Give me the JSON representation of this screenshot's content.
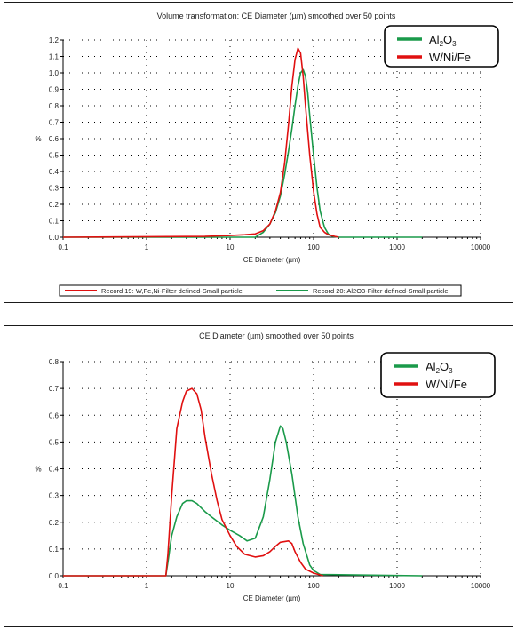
{
  "chart_data": [
    {
      "type": "line",
      "title": "Volume transformation: CE Diameter (µm) smoothed over 50 points",
      "xlabel": "CE Diameter (µm)",
      "ylabel": "%",
      "xscale": "log",
      "xlim": [
        0.1,
        10000
      ],
      "ylim": [
        0,
        1.2
      ],
      "x_ticks": [
        "0.1",
        "1",
        "10",
        "100",
        "1000",
        "10000"
      ],
      "y_ticks": [
        "0.0",
        "0.1",
        "0.2",
        "0.3",
        "0.4",
        "0.5",
        "0.6",
        "0.7",
        "0.8",
        "0.9",
        "1.0",
        "1.1",
        "1.2"
      ],
      "grid": true,
      "legend": {
        "placement": "top-right",
        "entries": [
          {
            "base": "Al",
            "sub1": "2",
            "mid": "O",
            "sub2": "3",
            "color": "#1a9a4a"
          },
          {
            "label": "W/Ni/Fe",
            "color": "#e01010"
          }
        ]
      },
      "records": [
        {
          "label": "Record 19: W,Fe,Ni-Filter defined-Small particle",
          "color": "#e01010"
        },
        {
          "label": "Record 20: Al2O3-Filter defined-Small particle",
          "color": "#1a9a4a"
        }
      ],
      "series": [
        {
          "color": "#1a9a4a",
          "x": [
            0.1,
            20,
            25,
            30,
            35,
            40,
            45,
            50,
            55,
            60,
            65,
            70,
            75,
            80,
            85,
            90,
            100,
            110,
            120,
            135,
            150,
            170,
            200,
            2000
          ],
          "y": [
            0,
            0,
            0.03,
            0.08,
            0.15,
            0.25,
            0.38,
            0.52,
            0.66,
            0.8,
            0.92,
            1.0,
            1.02,
            0.98,
            0.88,
            0.74,
            0.5,
            0.3,
            0.16,
            0.06,
            0.02,
            0.005,
            0,
            0
          ]
        },
        {
          "color": "#e01010",
          "x": [
            0.1,
            5,
            10,
            15,
            20,
            25,
            30,
            35,
            40,
            45,
            50,
            55,
            60,
            65,
            70,
            75,
            80,
            90,
            100,
            110,
            120,
            135,
            150,
            180,
            200
          ],
          "y": [
            0,
            0.005,
            0.01,
            0.015,
            0.02,
            0.04,
            0.08,
            0.16,
            0.27,
            0.45,
            0.68,
            0.92,
            1.08,
            1.15,
            1.12,
            0.98,
            0.8,
            0.5,
            0.28,
            0.14,
            0.06,
            0.03,
            0.015,
            0.005,
            0
          ]
        }
      ]
    },
    {
      "type": "line",
      "title": "CE Diameter (µm) smoothed over 50 points",
      "xlabel": "CE Diameter (µm)",
      "ylabel": "%",
      "xscale": "log",
      "xlim": [
        0.1,
        10000
      ],
      "ylim": [
        0,
        0.8
      ],
      "x_ticks": [
        "0.1",
        "1",
        "10",
        "100",
        "1000",
        "10000"
      ],
      "y_ticks": [
        "0.0",
        "0.1",
        "0.2",
        "0.3",
        "0.4",
        "0.5",
        "0.6",
        "0.7",
        "0.8"
      ],
      "grid": true,
      "legend": {
        "placement": "top-right",
        "entries": [
          {
            "base": "Al",
            "sub1": "2",
            "mid": "O",
            "sub2": "3",
            "color": "#1a9a4a"
          },
          {
            "label": "W/Ni/Fe",
            "color": "#e01010"
          }
        ]
      },
      "series": [
        {
          "color": "#1a9a4a",
          "x": [
            0.1,
            1.7,
            1.8,
            2.0,
            2.3,
            2.7,
            3.0,
            3.5,
            4.0,
            5.0,
            6.0,
            8.0,
            10,
            13,
            16,
            20,
            25,
            30,
            35,
            40,
            43,
            47,
            55,
            65,
            75,
            90,
            100,
            120,
            2000
          ],
          "y": [
            0,
            0,
            0.05,
            0.15,
            0.22,
            0.27,
            0.28,
            0.28,
            0.27,
            0.24,
            0.22,
            0.19,
            0.17,
            0.15,
            0.13,
            0.14,
            0.22,
            0.36,
            0.5,
            0.56,
            0.55,
            0.5,
            0.38,
            0.22,
            0.12,
            0.04,
            0.02,
            0.005,
            0
          ]
        },
        {
          "color": "#e01010",
          "x": [
            0.1,
            1.7,
            1.8,
            2.0,
            2.3,
            2.7,
            3.0,
            3.5,
            4.0,
            4.5,
            5.0,
            6.0,
            7.0,
            8.0,
            10,
            12,
            15,
            20,
            25,
            30,
            35,
            40,
            50,
            55,
            60,
            70,
            80,
            100,
            130
          ],
          "y": [
            0,
            0,
            0.08,
            0.3,
            0.55,
            0.65,
            0.69,
            0.7,
            0.68,
            0.62,
            0.52,
            0.38,
            0.28,
            0.21,
            0.15,
            0.11,
            0.08,
            0.07,
            0.075,
            0.09,
            0.11,
            0.125,
            0.13,
            0.12,
            0.09,
            0.05,
            0.025,
            0.01,
            0
          ]
        }
      ]
    }
  ]
}
